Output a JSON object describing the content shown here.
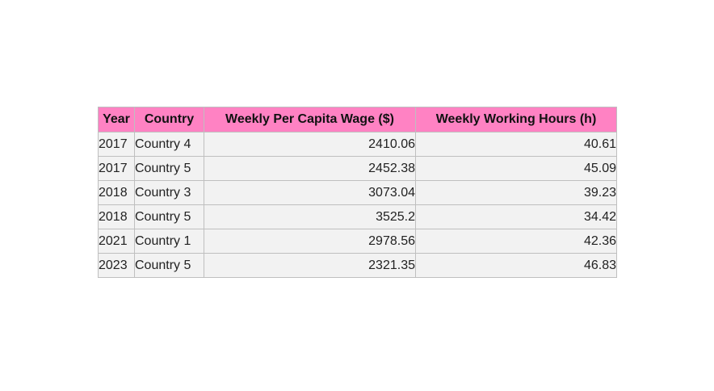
{
  "chart_data": {
    "type": "table",
    "columns": [
      "Year",
      "Country",
      "Weekly Per Capita Wage ($)",
      "Weekly Working Hours (h)"
    ],
    "rows": [
      [
        "2017",
        "Country 4",
        "2410.06",
        "40.61"
      ],
      [
        "2017",
        "Country 5",
        "2452.38",
        "45.09"
      ],
      [
        "2018",
        "Country 3",
        "3073.04",
        "39.23"
      ],
      [
        "2018",
        "Country 5",
        "3525.2",
        "34.42"
      ],
      [
        "2021",
        "Country 1",
        "2978.56",
        "42.36"
      ],
      [
        "2023",
        "Country 5",
        "2321.35",
        "46.83"
      ]
    ]
  },
  "colors": {
    "header_bg": "#ff82c3",
    "cell_bg": "#f2f2f2",
    "border": "#bfbfbf"
  }
}
